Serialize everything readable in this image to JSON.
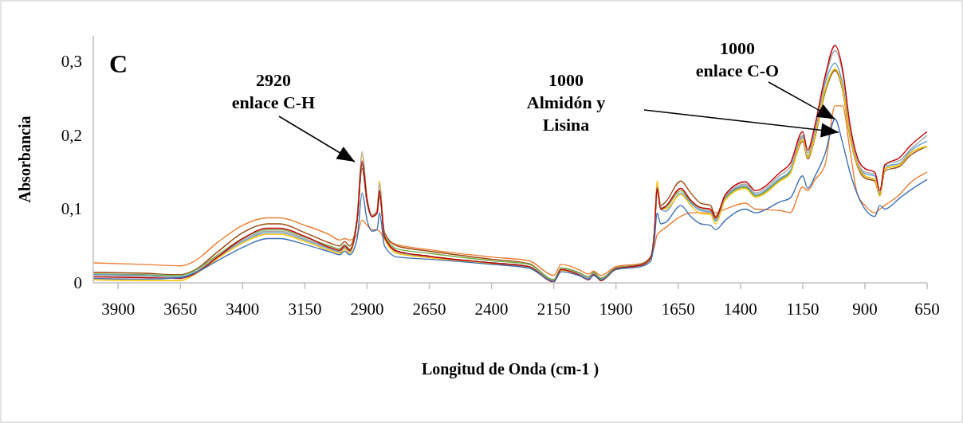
{
  "chart_data": {
    "type": "line",
    "xlabel": "Longitud de Onda (cm-1 )",
    "ylabel": "Absorbancia",
    "xlim": [
      4000,
      650
    ],
    "xticks": [
      3900,
      3650,
      3400,
      3150,
      2900,
      2650,
      2400,
      2150,
      1900,
      1650,
      1400,
      1150,
      900,
      650
    ],
    "ylim": [
      0,
      0.335
    ],
    "yticks": [
      {
        "value": 0,
        "label": "0"
      },
      {
        "value": 0.1,
        "label": "0,1"
      },
      {
        "value": 0.2,
        "label": "0,2"
      },
      {
        "value": 0.3,
        "label": "0,3"
      }
    ],
    "grid": false,
    "marker": "none",
    "line_style": "solid",
    "x": [
      4000,
      3800,
      3650,
      3600,
      3500,
      3400,
      3300,
      3250,
      3150,
      3050,
      3010,
      2990,
      2970,
      2940,
      2920,
      2900,
      2880,
      2860,
      2850,
      2830,
      2780,
      2650,
      2400,
      2250,
      2150,
      2120,
      2050,
      2010,
      1990,
      1960,
      1900,
      1800,
      1760,
      1745,
      1735,
      1720,
      1700,
      1640,
      1600,
      1560,
      1520,
      1500,
      1460,
      1380,
      1340,
      1240,
      1200,
      1150,
      1130,
      1100,
      1060,
      1020,
      990,
      960,
      930,
      900,
      860,
      840,
      820,
      760,
      720,
      650
    ],
    "annotations": [
      "C",
      "2920\nenlace C-H",
      "1000\nAlmidón y\nLisina",
      {
        "text": "1000\nenlace C-O",
        "x": 1020,
        "y": 0.222
      }
    ],
    "series": [
      {
        "color": "#ed7d31",
        "values": [
          0.027,
          0.025,
          0.023,
          0.028,
          0.055,
          0.078,
          0.088,
          0.088,
          0.078,
          0.065,
          0.058,
          0.06,
          0.058,
          0.065,
          0.085,
          0.078,
          0.072,
          0.072,
          0.07,
          0.06,
          0.052,
          0.045,
          0.035,
          0.03,
          0.01,
          0.025,
          0.018,
          0.012,
          0.016,
          0.01,
          0.022,
          0.026,
          0.035,
          0.05,
          0.065,
          0.07,
          0.075,
          0.09,
          0.095,
          0.095,
          0.095,
          0.095,
          0.1,
          0.108,
          0.1,
          0.098,
          0.095,
          0.13,
          0.125,
          0.14,
          0.16,
          0.24,
          0.24,
          0.18,
          0.12,
          0.105,
          0.095,
          0.1,
          0.105,
          0.12,
          0.135,
          0.15
        ]
      },
      {
        "color": "#9e480e",
        "values": [
          0.014,
          0.013,
          0.011,
          0.016,
          0.042,
          0.068,
          0.08,
          0.08,
          0.068,
          0.054,
          0.05,
          0.056,
          0.05,
          0.088,
          0.155,
          0.108,
          0.09,
          0.094,
          0.118,
          0.068,
          0.05,
          0.043,
          0.032,
          0.026,
          0.004,
          0.02,
          0.014,
          0.008,
          0.014,
          0.006,
          0.02,
          0.025,
          0.036,
          0.072,
          0.13,
          0.105,
          0.11,
          0.138,
          0.122,
          0.108,
          0.105,
          0.09,
          0.118,
          0.13,
          0.118,
          0.14,
          0.15,
          0.192,
          0.168,
          0.198,
          0.258,
          0.288,
          0.262,
          0.198,
          0.158,
          0.142,
          0.138,
          0.118,
          0.152,
          0.158,
          0.172,
          0.185
        ]
      },
      {
        "color": "#70ad47",
        "values": [
          0.012,
          0.011,
          0.01,
          0.015,
          0.038,
          0.06,
          0.072,
          0.072,
          0.062,
          0.05,
          0.046,
          0.052,
          0.046,
          0.085,
          0.16,
          0.11,
          0.09,
          0.095,
          0.12,
          0.065,
          0.046,
          0.04,
          0.03,
          0.025,
          0.004,
          0.02,
          0.014,
          0.008,
          0.014,
          0.006,
          0.02,
          0.025,
          0.035,
          0.07,
          0.125,
          0.1,
          0.102,
          0.125,
          0.11,
          0.1,
          0.098,
          0.085,
          0.115,
          0.13,
          0.118,
          0.14,
          0.15,
          0.195,
          0.17,
          0.2,
          0.26,
          0.29,
          0.265,
          0.2,
          0.16,
          0.145,
          0.14,
          0.12,
          0.155,
          0.16,
          0.175,
          0.185
        ]
      },
      {
        "color": "#5b9bd5",
        "values": [
          0.011,
          0.01,
          0.008,
          0.013,
          0.035,
          0.056,
          0.068,
          0.068,
          0.058,
          0.046,
          0.042,
          0.048,
          0.042,
          0.085,
          0.162,
          0.11,
          0.09,
          0.095,
          0.125,
          0.062,
          0.042,
          0.035,
          0.027,
          0.022,
          0.002,
          0.018,
          0.012,
          0.006,
          0.012,
          0.004,
          0.019,
          0.024,
          0.034,
          0.07,
          0.128,
          0.1,
          0.097,
          0.122,
          0.108,
          0.098,
          0.096,
          0.084,
          0.116,
          0.132,
          0.12,
          0.142,
          0.152,
          0.198,
          0.172,
          0.205,
          0.27,
          0.298,
          0.27,
          0.205,
          0.162,
          0.148,
          0.145,
          0.122,
          0.158,
          0.162,
          0.178,
          0.192
        ]
      },
      {
        "color": "#ffc000",
        "values": [
          0.004,
          0.003,
          0.003,
          0.01,
          0.033,
          0.054,
          0.066,
          0.066,
          0.056,
          0.044,
          0.04,
          0.046,
          0.04,
          0.088,
          0.175,
          0.115,
          0.092,
          0.098,
          0.138,
          0.06,
          0.04,
          0.034,
          0.026,
          0.021,
          0.002,
          0.017,
          0.011,
          0.005,
          0.011,
          0.003,
          0.018,
          0.023,
          0.033,
          0.072,
          0.138,
          0.102,
          0.1,
          0.12,
          0.105,
          0.094,
          0.093,
          0.08,
          0.113,
          0.128,
          0.116,
          0.138,
          0.148,
          0.195,
          0.17,
          0.2,
          0.262,
          0.29,
          0.265,
          0.2,
          0.16,
          0.145,
          0.14,
          0.118,
          0.155,
          0.16,
          0.175,
          0.185
        ]
      },
      {
        "color": "#a5a5a5",
        "values": [
          0.01,
          0.009,
          0.007,
          0.012,
          0.036,
          0.058,
          0.07,
          0.07,
          0.06,
          0.047,
          0.043,
          0.049,
          0.043,
          0.088,
          0.178,
          0.115,
          0.092,
          0.098,
          0.135,
          0.063,
          0.043,
          0.036,
          0.027,
          0.022,
          0.002,
          0.018,
          0.012,
          0.006,
          0.012,
          0.004,
          0.019,
          0.024,
          0.034,
          0.072,
          0.13,
          0.102,
          0.104,
          0.128,
          0.112,
          0.1,
          0.098,
          0.086,
          0.118,
          0.134,
          0.122,
          0.146,
          0.157,
          0.2,
          0.176,
          0.21,
          0.275,
          0.315,
          0.285,
          0.21,
          0.165,
          0.15,
          0.148,
          0.122,
          0.16,
          0.166,
          0.18,
          0.2
        ]
      },
      {
        "color": "#c00000",
        "values": [
          0.008,
          0.007,
          0.006,
          0.011,
          0.035,
          0.06,
          0.074,
          0.074,
          0.063,
          0.048,
          0.044,
          0.05,
          0.044,
          0.085,
          0.165,
          0.112,
          0.09,
          0.095,
          0.125,
          0.062,
          0.043,
          0.036,
          0.027,
          0.022,
          0.001,
          0.018,
          0.011,
          0.004,
          0.011,
          0.003,
          0.019,
          0.024,
          0.034,
          0.072,
          0.128,
          0.1,
          0.104,
          0.128,
          0.112,
          0.102,
          0.1,
          0.088,
          0.12,
          0.137,
          0.125,
          0.15,
          0.162,
          0.205,
          0.18,
          0.215,
          0.28,
          0.322,
          0.29,
          0.215,
          0.17,
          0.155,
          0.15,
          0.125,
          0.16,
          0.17,
          0.185,
          0.205
        ]
      },
      {
        "color": "#3c6eb4",
        "values": [
          0.006,
          0.005,
          0.007,
          0.012,
          0.03,
          0.048,
          0.06,
          0.06,
          0.052,
          0.042,
          0.038,
          0.043,
          0.038,
          0.06,
          0.122,
          0.085,
          0.07,
          0.072,
          0.095,
          0.05,
          0.035,
          0.032,
          0.025,
          0.02,
          0.002,
          0.015,
          0.01,
          0.005,
          0.01,
          0.004,
          0.018,
          0.022,
          0.03,
          0.06,
          0.095,
          0.08,
          0.082,
          0.105,
          0.09,
          0.08,
          0.078,
          0.072,
          0.085,
          0.1,
          0.095,
          0.11,
          0.115,
          0.145,
          0.128,
          0.145,
          0.175,
          0.222,
          0.19,
          0.15,
          0.12,
          0.1,
          0.09,
          0.105,
          0.1,
          0.115,
          0.125,
          0.14
        ]
      }
    ]
  }
}
